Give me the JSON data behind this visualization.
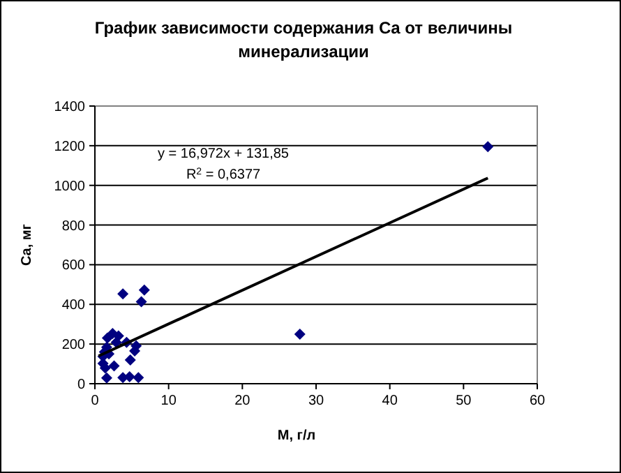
{
  "chart_data": {
    "type": "scatter",
    "title": "График зависимости содержания Ca от величины минерализации",
    "xlabel": "M, г/л",
    "ylabel": "Ca, мг",
    "xlim": [
      0,
      60
    ],
    "xticks": [
      0,
      10,
      20,
      30,
      40,
      50,
      60
    ],
    "ylim": [
      0,
      1400
    ],
    "yticks": [
      0,
      200,
      400,
      600,
      800,
      1000,
      1200,
      1400
    ],
    "grid": "y",
    "annotations": [
      "y = 16,972x + 131,85",
      "R$^{2}$ = 0,6377"
    ],
    "series": [
      {
        "marker": "diamond",
        "color": "#000080",
        "x": [
          6.7,
          3.8,
          6.3,
          2.4,
          3.2,
          1.7,
          1.6,
          2.9,
          4.3,
          5.6,
          5.4,
          1.3,
          1.1,
          1.9,
          1.1,
          1.4,
          2.6,
          4.8,
          1.6,
          3.8,
          4.7,
          5.9,
          27.8,
          53.3
        ],
        "values": [
          472,
          453,
          413,
          253,
          241,
          230,
          184,
          208,
          208,
          191,
          165,
          160,
          137,
          150,
          102,
          79,
          90,
          120,
          29,
          31,
          35,
          31,
          250,
          1195
        ]
      },
      {
        "type": "line",
        "color": "#000000",
        "x": [
          0.5,
          53.3
        ],
        "values": [
          140,
          1037
        ]
      }
    ]
  }
}
